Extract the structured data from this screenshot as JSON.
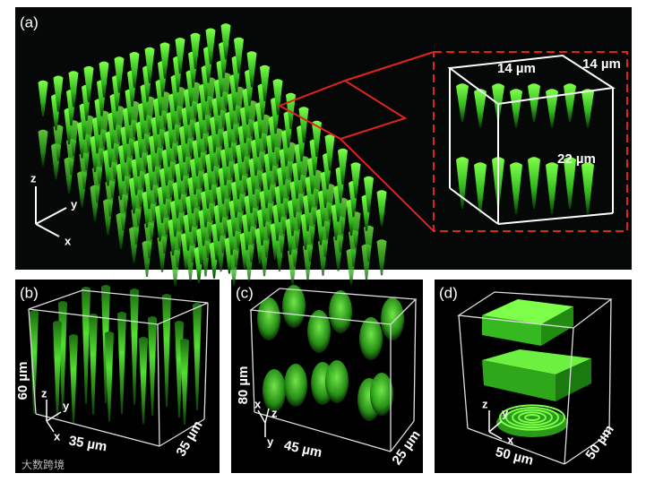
{
  "panel_a": {
    "label": "(a)",
    "axes": {
      "z": "z",
      "y": "y",
      "x": "x"
    },
    "inset": {
      "width": "14 µm",
      "depth": "14 µm",
      "height": "22 µm"
    }
  },
  "panel_b": {
    "label": "(b)",
    "height": "60 µm",
    "width": "35 µm",
    "depth": "35 µm",
    "axes": {
      "z": "z",
      "y": "y",
      "x": "x"
    }
  },
  "panel_c": {
    "label": "(c)",
    "height": "80 µm",
    "width": "45 µm",
    "depth": "25 µm",
    "axes": {
      "x": "x",
      "z": "z",
      "y": "y"
    }
  },
  "panel_d": {
    "label": "(d)",
    "width": "50 µm",
    "depth": "50 µm",
    "axes": {
      "z": "z",
      "y": "y",
      "x": "x"
    }
  },
  "watermark": "大数跨境"
}
